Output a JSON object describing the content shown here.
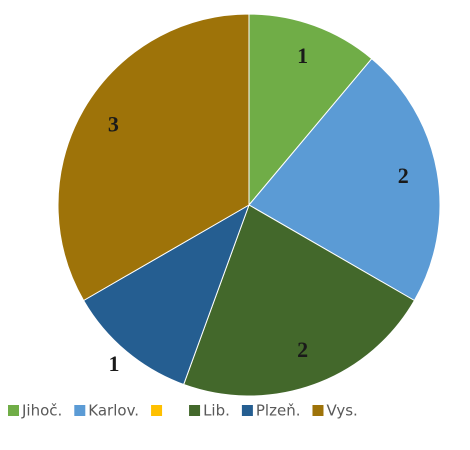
{
  "chart_data": {
    "type": "pie",
    "categories": [
      "Jihoč.",
      "Karlov.",
      null,
      "Lib.",
      "Plzeň.",
      "Vys."
    ],
    "values": [
      1,
      2,
      0,
      2,
      1,
      3
    ],
    "colors": [
      "#70ad47",
      "#5b9bd5",
      "#ffc000",
      "#43682b",
      "#255e91",
      "#9e7309"
    ]
  }
}
